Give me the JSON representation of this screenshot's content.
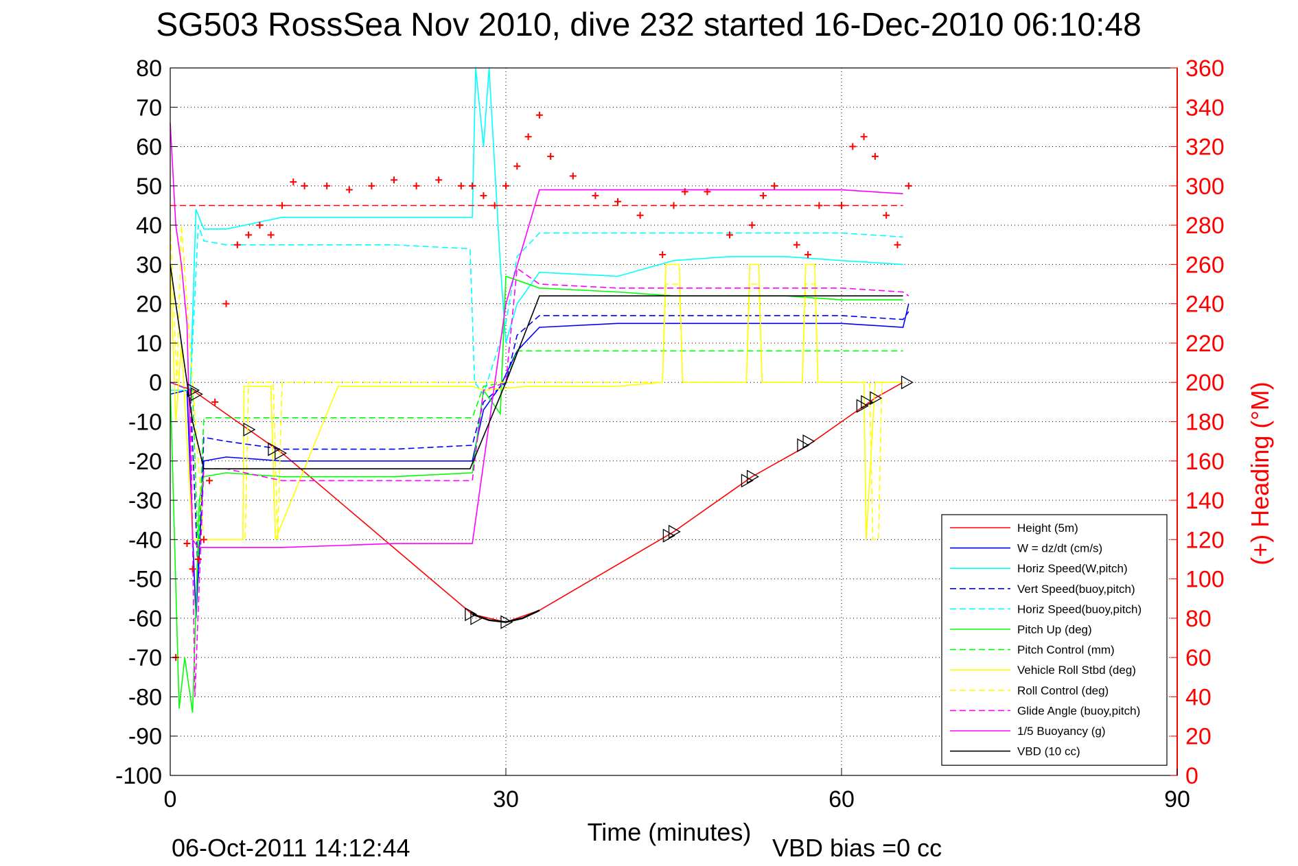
{
  "chart_data": {
    "type": "line",
    "title": "SG503 RossSea Nov 2010, dive 232 started 16-Dec-2010 06:10:48",
    "xlabel": "Time (minutes)",
    "ylabel": "",
    "y2label": "(+) Heading (°M)",
    "xlim": [
      0,
      90
    ],
    "ylim": [
      -100,
      80
    ],
    "y2lim": [
      0,
      360
    ],
    "x_ticks": [
      "0",
      "30",
      "60",
      "90"
    ],
    "y_ticks": [
      "80",
      "70",
      "60",
      "50",
      "40",
      "30",
      "20",
      "10",
      "0",
      "-10",
      "-20",
      "-30",
      "-40",
      "-50",
      "-60",
      "-70",
      "-80",
      "-90",
      "-100"
    ],
    "y2_ticks": [
      "360",
      "340",
      "320",
      "300",
      "280",
      "260",
      "240",
      "220",
      "200",
      "180",
      "160",
      "140",
      "120",
      "100",
      "80",
      "60",
      "40",
      "20",
      "0"
    ],
    "grid": true,
    "legend_position": "bottom-right",
    "footer_left": "06-Oct-2011 14:12:44",
    "footer_right": "VBD bias =0 cc",
    "colors": {
      "red": "#ff0000",
      "blue": "#0000ff",
      "cyan": "#00ffff",
      "green": "#00ff00",
      "yellow": "#ffff00",
      "magenta": "#ff00ff",
      "black": "#000000"
    },
    "series": [
      {
        "name": "Height (5m)",
        "color": "#ff0000",
        "dash": false,
        "x": [
          0,
          2,
          7,
          10,
          27,
          30,
          33,
          45,
          52,
          57,
          62,
          63,
          65.5
        ],
        "y": [
          0,
          -2,
          -12,
          -18,
          -59,
          -61,
          -58,
          -38,
          -24,
          -16,
          -6,
          -4,
          0
        ]
      },
      {
        "name": "W = dz/dt (cm/s)",
        "color": "#0000ff",
        "dash": false,
        "x": [
          0,
          1.5,
          2.3,
          3,
          5,
          10,
          20,
          27,
          28,
          29.5,
          31,
          33,
          40,
          45,
          50,
          55,
          60,
          65.5,
          66
        ],
        "y": [
          -3,
          -2,
          -60,
          -20,
          -19,
          -20,
          -20,
          -20,
          -7,
          -1,
          8,
          14,
          15,
          15,
          15,
          15,
          15,
          14,
          20
        ]
      },
      {
        "name": "Horiz Speed(W,pitch)",
        "color": "#00ffff",
        "dash": false,
        "x": [
          0,
          1.8,
          2.3,
          3,
          5,
          10,
          20,
          27,
          27.3,
          28,
          28.5,
          29.5,
          30,
          31,
          33,
          40,
          45,
          50,
          55,
          60,
          65.5
        ],
        "y": [
          -2,
          -2,
          44,
          39,
          39,
          42,
          42,
          42,
          80,
          60,
          80,
          30,
          10,
          20,
          28,
          27,
          31,
          32,
          32,
          31,
          30
        ]
      },
      {
        "name": "Vert Speed(buoy,pitch)",
        "color": "#0000ff",
        "dash": true,
        "x": [
          0,
          1.8,
          2.5,
          3,
          5,
          10,
          20,
          27,
          28,
          30,
          31,
          33,
          40,
          45,
          50,
          55,
          60,
          65.5,
          66
        ],
        "y": [
          0,
          -2,
          -50,
          -14,
          -15,
          -17,
          -17,
          -16,
          -5,
          0,
          12,
          17,
          17,
          17,
          17,
          17,
          17,
          16,
          18
        ]
      },
      {
        "name": "Horiz Speed(buoy,pitch)",
        "color": "#00ffff",
        "dash": true,
        "x": [
          0,
          1.8,
          2.5,
          3,
          5,
          10,
          20,
          26.8,
          27.2,
          28,
          30,
          31,
          33,
          40,
          45,
          50,
          55,
          60,
          65.5
        ],
        "y": [
          0,
          -2,
          40,
          36,
          35,
          35,
          35,
          34,
          0,
          -3,
          15,
          32,
          38,
          38,
          38,
          38,
          38,
          38,
          37
        ]
      },
      {
        "name": "Pitch Up (deg)",
        "color": "#00ff00",
        "dash": false,
        "x": [
          0,
          0.8,
          1.3,
          2,
          2.6,
          3,
          5,
          10,
          20,
          27,
          28,
          29.5,
          30,
          31,
          33,
          40,
          45,
          50,
          55,
          60,
          65.5
        ],
        "y": [
          0,
          -83,
          -70,
          -84,
          -30,
          -24,
          -23,
          -24,
          -24,
          -23,
          -2,
          -8,
          27,
          26,
          24,
          23,
          22,
          22,
          22,
          21,
          21
        ]
      },
      {
        "name": "Pitch Control (mm)",
        "color": "#00ff00",
        "dash": true,
        "x": [
          0,
          2,
          2.5,
          3,
          5,
          10,
          20,
          27,
          28,
          30,
          31,
          33,
          40,
          45,
          50,
          55,
          60,
          65.5
        ],
        "y": [
          0,
          -2,
          -45,
          -9,
          -9,
          -9,
          -9,
          -9,
          -1,
          0,
          8,
          8,
          8,
          8,
          8,
          8,
          8,
          8
        ]
      },
      {
        "name": "Vehicle Roll Stbd (deg)",
        "color": "#ffff00",
        "dash": false,
        "x": [
          0,
          0.5,
          1,
          2,
          3,
          6.5,
          6.6,
          9,
          9.4,
          15,
          20,
          27,
          28,
          32,
          40,
          44,
          44.3,
          45.5,
          45.8,
          51.5,
          51.8,
          52.6,
          52.9,
          56.5,
          56.8,
          57.6,
          57.9,
          62,
          62.2,
          63,
          65.5
        ],
        "y": [
          30,
          -10,
          10,
          -40,
          -40,
          -40,
          -1,
          -1,
          -40,
          -1,
          -1,
          -1,
          -2,
          -1,
          -1,
          0,
          30,
          30,
          0,
          0,
          30,
          30,
          0,
          0,
          30,
          30,
          0,
          0,
          -40,
          0,
          0
        ]
      },
      {
        "name": "Roll Control (deg)",
        "color": "#ffff00",
        "dash": true,
        "x": [
          0,
          0.6,
          1,
          2,
          3,
          6.7,
          7,
          9.2,
          9.6,
          10,
          20,
          27,
          28,
          33,
          40,
          44,
          44.3,
          45.5,
          45.8,
          51.5,
          51.8,
          52.6,
          52.9,
          56.5,
          56.8,
          57.6,
          57.9,
          62.5,
          62.8,
          63.3,
          63.6,
          65.5
        ],
        "y": [
          40,
          0,
          40,
          0,
          -40,
          -40,
          0,
          0,
          -40,
          0,
          0,
          0,
          0,
          0,
          0,
          0,
          25,
          25,
          0,
          0,
          25,
          25,
          0,
          0,
          25,
          25,
          0,
          0,
          -40,
          -40,
          0,
          0
        ]
      },
      {
        "name": "Glide Angle (buoy,pitch)",
        "color": "#ff00ff",
        "dash": true,
        "x": [
          0,
          1.8,
          2.2,
          3,
          5,
          10,
          20,
          27,
          28,
          30,
          31,
          33,
          40,
          45,
          50,
          55,
          60,
          65.5,
          66
        ],
        "y": [
          0,
          -2,
          -80,
          -22,
          -22,
          -25,
          -25,
          -25,
          -2,
          0,
          29,
          25,
          24,
          24,
          24,
          24,
          24,
          23,
          22
        ]
      },
      {
        "name": "1/5 Buoyancy (g)",
        "color": "#ff00ff",
        "dash": false,
        "x": [
          0,
          0.5,
          1,
          1.5,
          2,
          2.5,
          5,
          10,
          20,
          27,
          30,
          33,
          40,
          50,
          60,
          65.5
        ],
        "y": [
          66,
          40,
          30,
          15,
          -40,
          -42,
          -42,
          -42,
          -41,
          -41,
          20,
          49,
          49,
          49,
          49,
          48
        ]
      },
      {
        "name": "VBD (10 cc)",
        "color": "#000000",
        "dash": false,
        "x": [
          0,
          1,
          2,
          3,
          5,
          10,
          20,
          26.8,
          30,
          33,
          40,
          50,
          60,
          65.5
        ],
        "y": [
          30,
          10,
          -10,
          -22,
          -22,
          -22,
          -22,
          -22,
          0,
          22,
          22,
          22,
          22,
          22
        ]
      },
      {
        "name": "Heading",
        "color": "#ff0000",
        "marker": "+",
        "axis": "right",
        "x": [
          0.5,
          1.5,
          2,
          2.5,
          3,
          3.5,
          4,
          5,
          6,
          7,
          8,
          9,
          10,
          11,
          12,
          14,
          16,
          18,
          20,
          22,
          24,
          26,
          27,
          28,
          29,
          30,
          31,
          32,
          33,
          34,
          36,
          38,
          40,
          42,
          44,
          45,
          46,
          48,
          50,
          52,
          53,
          54,
          56,
          57,
          58,
          60,
          61,
          62,
          63,
          64,
          65,
          66
        ],
        "y": [
          60,
          118,
          105,
          110,
          120,
          150,
          190,
          240,
          270,
          275,
          280,
          275,
          290,
          302,
          300,
          300,
          298,
          300,
          303,
          300,
          303,
          300,
          300,
          295,
          290,
          300,
          310,
          325,
          336,
          315,
          305,
          295,
          292,
          285,
          265,
          290,
          297,
          297,
          275,
          280,
          295,
          300,
          270,
          265,
          290,
          290,
          320,
          325,
          315,
          285,
          270,
          300
        ]
      },
      {
        "name": "",
        "color": "#ff0000",
        "dash": true,
        "axis": "right",
        "x": [
          0,
          65.5
        ],
        "y": [
          290,
          290
        ]
      }
    ],
    "markers": {
      "name": "waypoint-triangles",
      "x": [
        2,
        2.3,
        7,
        9.2,
        9.8,
        26.8,
        27.3,
        30,
        44.5,
        45,
        51.5,
        52,
        56.5,
        57,
        61.8,
        62.2,
        63,
        65.8
      ],
      "y": [
        -2,
        -3,
        -12,
        -17,
        -18,
        -59,
        -60,
        -61,
        -39,
        -38,
        -25,
        -24,
        -16,
        -15,
        -6,
        -5,
        -4,
        0
      ]
    }
  }
}
